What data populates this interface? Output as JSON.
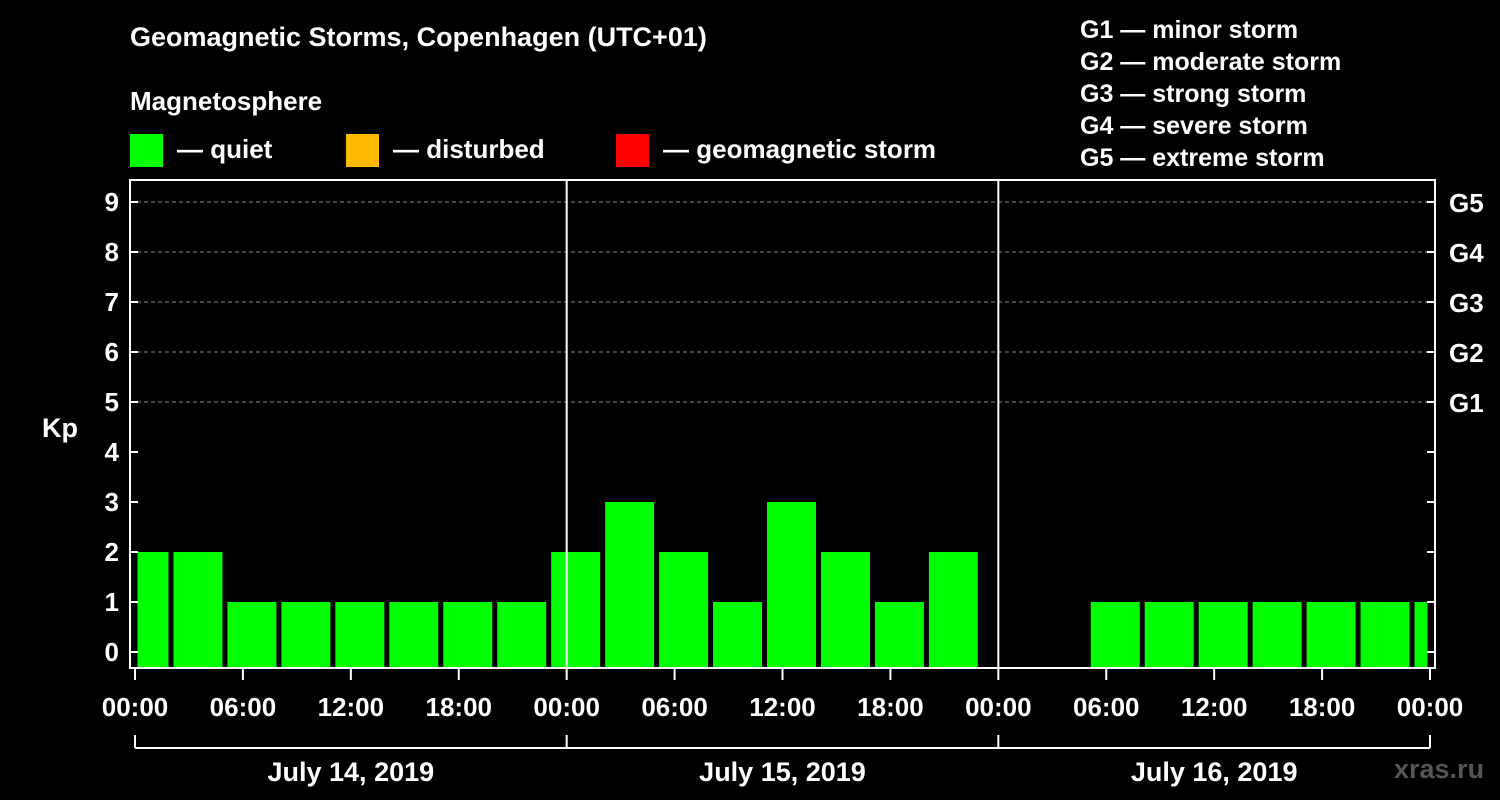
{
  "title": "Geomagnetic Storms, Copenhagen (UTC+01)",
  "magnetosphere_label": "Magnetosphere",
  "legend": [
    {
      "label": "— quiet",
      "color": "#00ff00"
    },
    {
      "label": "— disturbed",
      "color": "#ffbb00"
    },
    {
      "label": "— geomagnetic storm",
      "color": "#ff0000"
    }
  ],
  "storm_scale": [
    "G1 — minor storm",
    "G2 — moderate storm",
    "G3 — strong storm",
    "G4 — severe storm",
    "G5 — extreme storm"
  ],
  "watermark": "xras.ru",
  "chart_data": {
    "type": "bar",
    "ylabel": "Kp",
    "ylim": [
      0,
      9
    ],
    "y_ticks": [
      "0",
      "1",
      "2",
      "3",
      "4",
      "5",
      "6",
      "7",
      "8",
      "9"
    ],
    "right_ticks": [
      {
        "kp": 5,
        "label": "G1"
      },
      {
        "kp": 6,
        "label": "G2"
      },
      {
        "kp": 7,
        "label": "G3"
      },
      {
        "kp": 8,
        "label": "G4"
      },
      {
        "kp": 9,
        "label": "G5"
      }
    ],
    "x_ticks": [
      "00:00",
      "06:00",
      "12:00",
      "18:00",
      "00:00",
      "06:00",
      "12:00",
      "18:00",
      "00:00",
      "06:00",
      "12:00",
      "18:00",
      "00:00"
    ],
    "days": [
      "July 14, 2019",
      "July 15, 2019",
      "July 16, 2019"
    ],
    "bar_color": "#00ff00",
    "bars": [
      {
        "start_h": 0,
        "end_h": 2,
        "kp": 2
      },
      {
        "start_h": 2,
        "end_h": 5,
        "kp": 2
      },
      {
        "start_h": 5,
        "end_h": 8,
        "kp": 1
      },
      {
        "start_h": 8,
        "end_h": 11,
        "kp": 1
      },
      {
        "start_h": 11,
        "end_h": 14,
        "kp": 1
      },
      {
        "start_h": 14,
        "end_h": 17,
        "kp": 1
      },
      {
        "start_h": 17,
        "end_h": 20,
        "kp": 1
      },
      {
        "start_h": 20,
        "end_h": 23,
        "kp": 1
      },
      {
        "start_h": 23,
        "end_h": 26,
        "kp": 2
      },
      {
        "start_h": 26,
        "end_h": 29,
        "kp": 3
      },
      {
        "start_h": 29,
        "end_h": 32,
        "kp": 2
      },
      {
        "start_h": 32,
        "end_h": 35,
        "kp": 1
      },
      {
        "start_h": 35,
        "end_h": 38,
        "kp": 3
      },
      {
        "start_h": 38,
        "end_h": 41,
        "kp": 2
      },
      {
        "start_h": 41,
        "end_h": 44,
        "kp": 1
      },
      {
        "start_h": 44,
        "end_h": 47,
        "kp": 2
      },
      {
        "start_h": 53,
        "end_h": 56,
        "kp": 1
      },
      {
        "start_h": 56,
        "end_h": 59,
        "kp": 1
      },
      {
        "start_h": 59,
        "end_h": 62,
        "kp": 1
      },
      {
        "start_h": 62,
        "end_h": 65,
        "kp": 1
      },
      {
        "start_h": 65,
        "end_h": 68,
        "kp": 1
      },
      {
        "start_h": 68,
        "end_h": 71,
        "kp": 1
      },
      {
        "start_h": 71,
        "end_h": 72,
        "kp": 1
      }
    ]
  }
}
